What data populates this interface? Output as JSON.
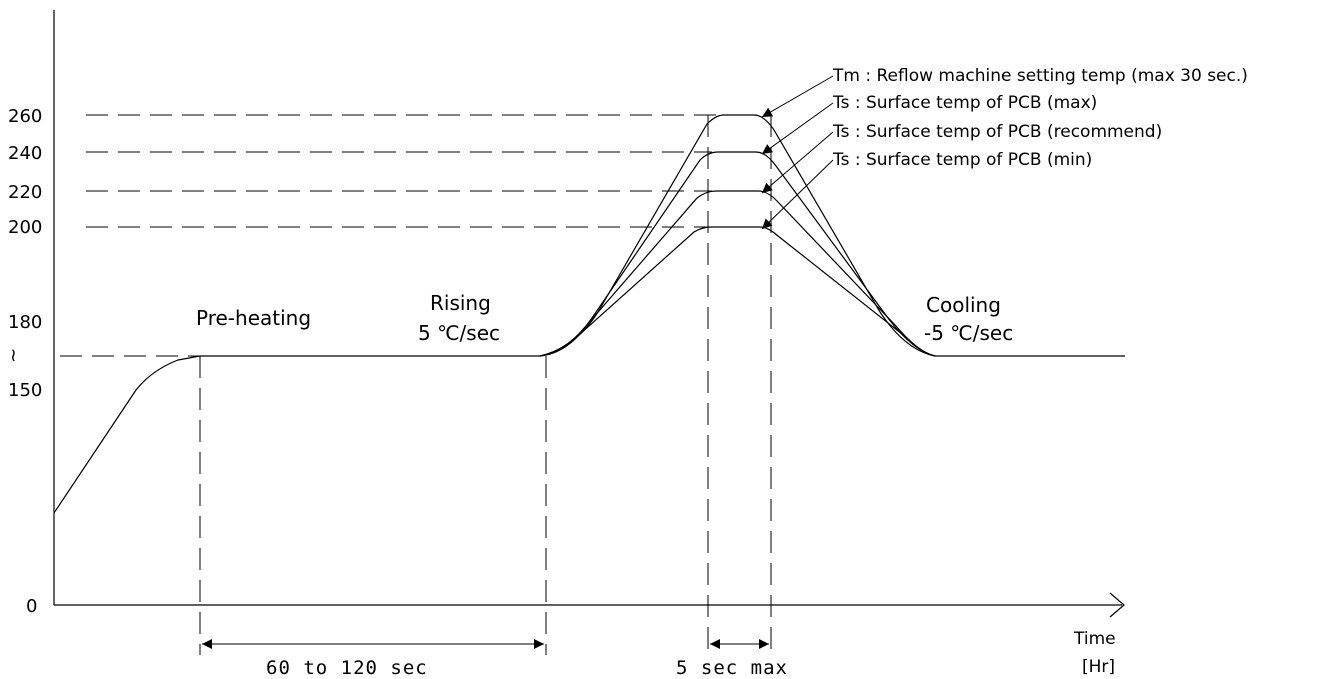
{
  "y_axis": {
    "ticks": [
      "260",
      "240",
      "220",
      "200",
      "180",
      "150",
      "0"
    ],
    "break_mark": "≀"
  },
  "x_axis": {
    "label": "Time",
    "unit": "[Hr]"
  },
  "phases": {
    "preheat": "Pre-heating",
    "rising_title": "Rising",
    "rising_rate": "5 ℃/sec",
    "cooling_title": "Cooling",
    "cooling_rate": "-5 ℃/sec"
  },
  "durations": {
    "preheat": "60 to 120 sec",
    "peak": "5 sec max"
  },
  "legend": [
    "Tm : Reflow machine setting temp (max 30 sec.)",
    "Ts : Surface temp of PCB (max)",
    "Ts : Surface temp of PCB (recommend)",
    "Ts : Surface temp of PCB (min)"
  ],
  "peak_temps": [
    260,
    240,
    220,
    200
  ]
}
